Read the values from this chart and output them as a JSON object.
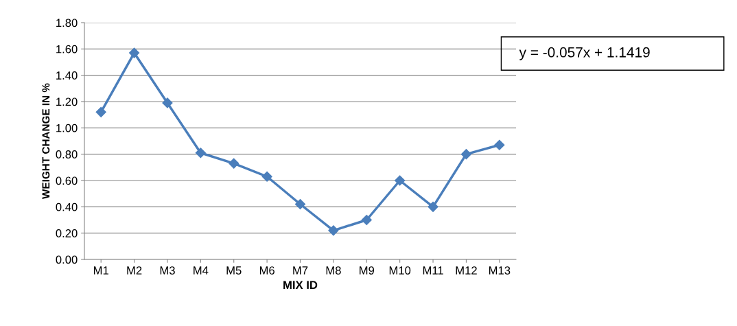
{
  "chart_data": {
    "type": "line",
    "xlabel": "MIX ID",
    "ylabel": "WEIGHT CHANGE IN %",
    "categories": [
      "M1",
      "M2",
      "M3",
      "M4",
      "M5",
      "M6",
      "M7",
      "M8",
      "M9",
      "M10",
      "M11",
      "M12",
      "M13"
    ],
    "series": [
      {
        "color": "#4a7ebb",
        "values": [
          1.12,
          1.57,
          1.19,
          0.81,
          0.73,
          0.63,
          0.42,
          0.22,
          0.3,
          0.6,
          0.4,
          0.8,
          0.87
        ]
      }
    ],
    "ylim": [
      0,
      1.8
    ],
    "yticks": [
      {
        "value": 0,
        "label": "0.00"
      },
      {
        "value": 0.2,
        "label": "0.20"
      },
      {
        "value": 0.4,
        "label": "0.40"
      },
      {
        "value": 0.6,
        "label": "0.60"
      },
      {
        "value": 0.8,
        "label": "0.80"
      },
      {
        "value": 1.0,
        "label": "1.00"
      },
      {
        "value": 1.2,
        "label": "1.20"
      },
      {
        "value": 1.4,
        "label": "1.40"
      },
      {
        "value": 1.6,
        "label": "1.60"
      },
      {
        "value": 1.8,
        "label": "1.80"
      }
    ],
    "grid": "y",
    "marker": "diamond",
    "line_style": "solid",
    "legend": false,
    "annotations": [
      "y = -0.057x + 1.1419"
    ]
  }
}
